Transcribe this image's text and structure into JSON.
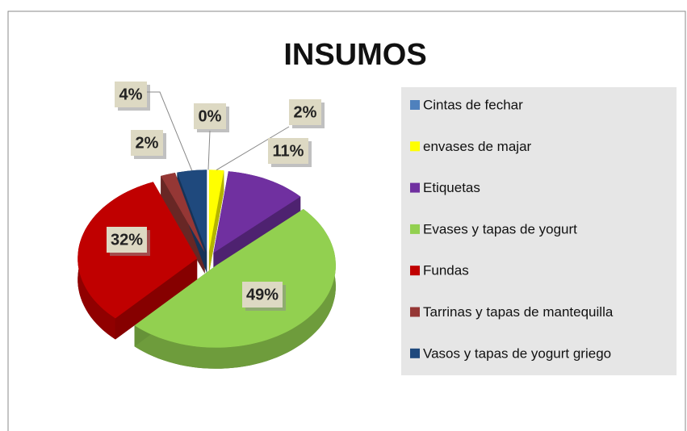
{
  "chart_data": {
    "type": "pie",
    "title": "INSUMOS",
    "categories": [
      "Cintas de fechar",
      "envases de majar",
      "Etiquetas",
      "Evases y tapas de yogurt",
      "Fundas",
      "Tarrinas y tapas de mantequilla",
      "Vasos y tapas de yogurt griego"
    ],
    "values": [
      0,
      2,
      11,
      49,
      32,
      2,
      4
    ],
    "value_labels": [
      "0%",
      "2%",
      "11%",
      "49%",
      "32%",
      "2%",
      "4%"
    ],
    "colors": [
      "#4f81bd",
      "#ffff00",
      "#7030a0",
      "#92d050",
      "#c00000",
      "#953735",
      "#1f497d"
    ],
    "legend": "right"
  }
}
